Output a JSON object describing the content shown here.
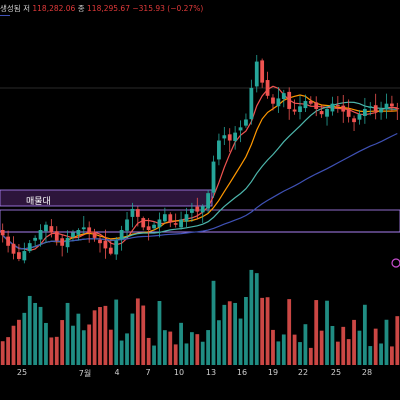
{
  "header": {
    "tail_label": "생성됨",
    "low_label": "저",
    "low_value": "118,282.06",
    "close_label": "종",
    "close_value": "118,295.67",
    "change": "−315.93 (−0.27%)"
  },
  "zone_label": "매물대",
  "x_axis": {
    "ticks": [
      "25",
      "7월",
      "4",
      "7",
      "10",
      "13",
      "16",
      "19",
      "22",
      "25",
      "28"
    ]
  },
  "colors": {
    "background": "#000000",
    "candle_up": "#26a69a",
    "candle_down": "#ef5350",
    "ma_fast": "#ef5350",
    "ma_mid": "#ff9800",
    "ma_slow": "#4db6ac",
    "ma_long": "#3f51b5",
    "zone_border": "#b388ff",
    "volume_up": "#26a69a",
    "volume_down": "#ef5350"
  },
  "chart_data": {
    "type": "candlestick",
    "series": [
      {
        "name": "price",
        "closes": [
          102,
          98,
          95,
          93,
          96,
          99,
          101,
          104,
          106,
          103,
          100,
          98,
          101,
          103,
          104,
          105,
          103,
          101,
          99,
          97,
          95,
          100,
          104,
          108,
          112,
          109,
          105,
          104,
          106,
          108,
          110,
          107,
          106,
          108,
          110,
          112,
          111,
          113,
          118,
          130,
          138,
          140,
          138,
          141,
          143,
          146,
          158,
          168,
          160,
          155,
          152,
          154,
          156,
          150,
          149,
          151,
          153,
          152,
          150,
          148,
          150,
          152,
          151,
          149,
          147,
          145,
          148,
          150,
          151,
          149,
          150,
          152,
          151,
          150
        ]
      }
    ]
  }
}
